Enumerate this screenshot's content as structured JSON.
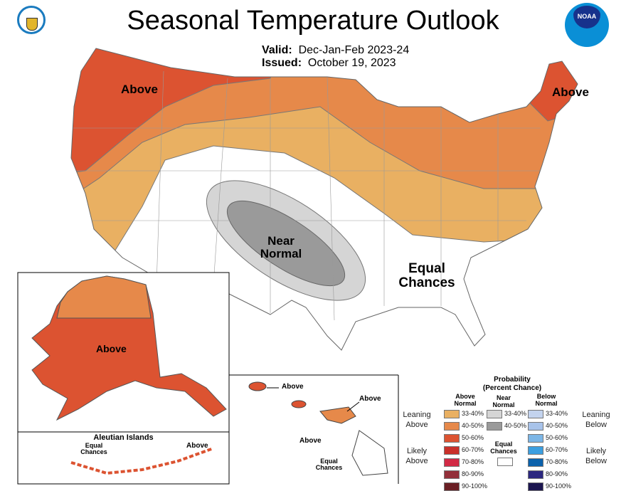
{
  "header": {
    "title": "Seasonal Temperature Outlook",
    "valid_label": "Valid:",
    "valid_value": "Dec-Jan-Feb 2023-24",
    "issued_label": "Issued:",
    "issued_value": "October 19, 2023",
    "logos": [
      "Department of Commerce seal",
      "NOAA logo"
    ]
  },
  "map_labels": {
    "conus_northwest": "Above",
    "conus_northeast": "Above",
    "conus_near_normal": "Near Normal",
    "conus_equal_chances": "Equal Chances",
    "alaska": "Above",
    "aleutian_title": "Aleutian Islands",
    "aleutian_equal_chances": "Equal Chances",
    "aleutian_above": "Above",
    "hawaii_above_1": "Above",
    "hawaii_above_2": "Above",
    "hawaii_above_3": "Above",
    "hawaii_equal_chances": "Equal Chances"
  },
  "legend": {
    "title": "Probability",
    "subtitle": "(Percent Chance)",
    "above_header": "Above Normal",
    "near_header": "Near Normal",
    "below_header": "Below Normal",
    "leaning_above": "Leaning Above",
    "likely_above": "Likely Above",
    "leaning_below": "Leaning Below",
    "likely_below": "Likely Below",
    "equal_chances": "Equal Chances",
    "equal_color": "#ffffff",
    "above": [
      {
        "range": "33-40%",
        "color": "#e9b062"
      },
      {
        "range": "40-50%",
        "color": "#e6894a"
      },
      {
        "range": "50-60%",
        "color": "#dc5331"
      },
      {
        "range": "60-70%",
        "color": "#c9302a"
      },
      {
        "range": "70-80%",
        "color": "#d22a45"
      },
      {
        "range": "80-90%",
        "color": "#93303a"
      },
      {
        "range": "90-100%",
        "color": "#6a1f24"
      }
    ],
    "near": [
      {
        "range": "33-40%",
        "color": "#d5d5d5"
      },
      {
        "range": "40-50%",
        "color": "#9a9a9a"
      }
    ],
    "below": [
      {
        "range": "33-40%",
        "color": "#c3d3ee"
      },
      {
        "range": "40-50%",
        "color": "#a8c3ea"
      },
      {
        "range": "50-60%",
        "color": "#7cb6e6"
      },
      {
        "range": "60-70%",
        "color": "#3c9fe0"
      },
      {
        "range": "70-80%",
        "color": "#0b62ac"
      },
      {
        "range": "80-90%",
        "color": "#2c2880"
      },
      {
        "range": "90-100%",
        "color": "#1c1650"
      }
    ]
  }
}
